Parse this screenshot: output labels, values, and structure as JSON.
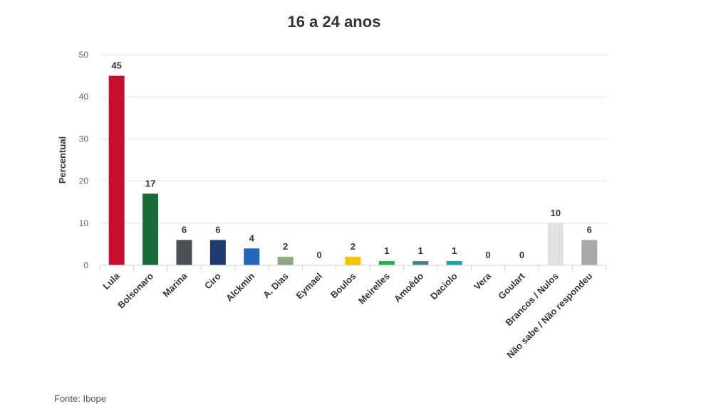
{
  "chart_data": {
    "type": "bar",
    "title": "16 a 24 anos",
    "ylabel": "Percentual",
    "ylim": [
      0,
      50
    ],
    "yticks": [
      0,
      10,
      20,
      30,
      40,
      50
    ],
    "grid": true,
    "categories": [
      "Lula",
      "Bolsonaro",
      "Marina",
      "Ciro",
      "Alckmin",
      "A. Dias",
      "Eymael",
      "Boulos",
      "Meirelles",
      "Amoêdo",
      "Daciolo",
      "Vera",
      "Goulart",
      "Brancos / Nulos",
      "Não sabe / Não respondeu"
    ],
    "values": [
      45,
      17,
      6,
      6,
      4,
      2,
      0,
      2,
      1,
      1,
      1,
      0,
      0,
      10,
      6
    ],
    "colors": [
      "#c8102e",
      "#1b6b3a",
      "#4a4f54",
      "#1f3a6e",
      "#2268b8",
      "#8fa97e",
      "#cccccc",
      "#f2c500",
      "#22b14c",
      "#4d7f86",
      "#17a3a3",
      "#cccccc",
      "#cccccc",
      "#e2e2e2",
      "#a8a8a8"
    ]
  },
  "source": "Fonte: Ibope"
}
